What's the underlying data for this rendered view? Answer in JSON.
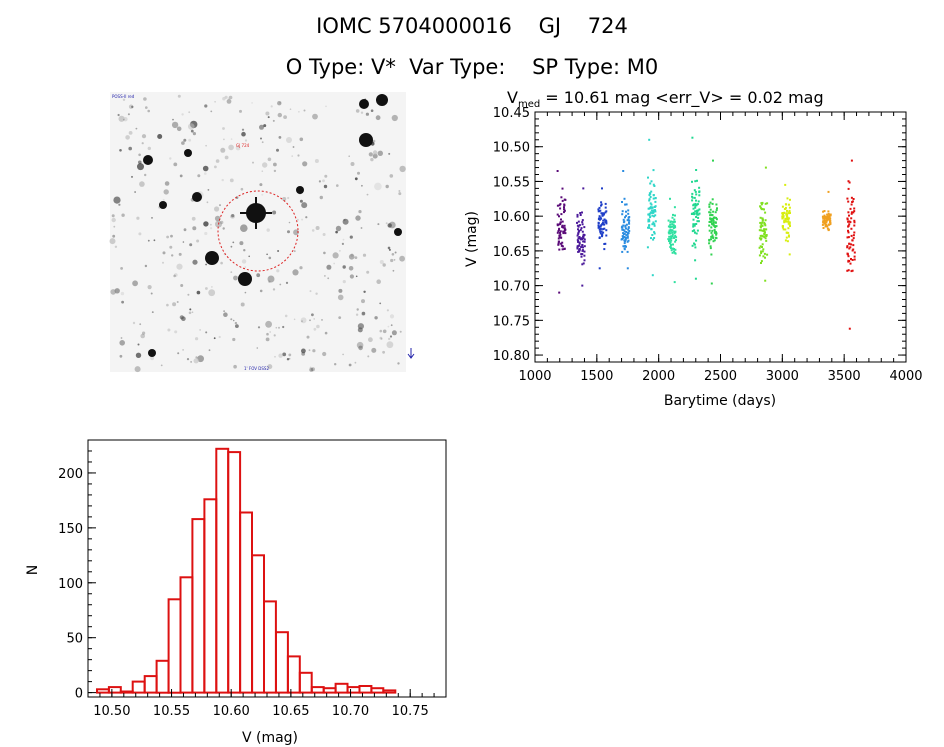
{
  "header": {
    "line1": "IOMC 5704000016    GJ    724",
    "line2": "O Type: V*  Var Type:    SP Type: M0"
  },
  "image_panel": {
    "label_top_left": "POSS-II red",
    "label_center": "GJ 724",
    "label_bottom": "1' FOV  DSS2"
  },
  "colors": {
    "histogram_bar": "#dd1111",
    "circle": "#dd2222",
    "axis": "#000000"
  },
  "chart_data": [
    {
      "type": "scatter",
      "title_parts": {
        "v": "V",
        "sub": "med",
        "rest": " = 10.61 mag <err_V> = 0.02 mag"
      },
      "xlabel": "Barytime (days)",
      "ylabel": "V (mag)",
      "xlim": [
        1000,
        4000
      ],
      "ylim": [
        10.45,
        10.81
      ],
      "y_inverted": true,
      "xticks": [
        1000,
        1500,
        2000,
        2500,
        3000,
        3500,
        4000
      ],
      "xtick_labels": [
        "1000",
        "1500",
        "2000",
        "2500",
        "3000",
        "3500",
        "4000"
      ],
      "yticks": [
        10.45,
        10.5,
        10.55,
        10.6,
        10.65,
        10.7,
        10.75,
        10.8
      ],
      "ytick_labels": [
        "10.45",
        "10.50",
        "10.55",
        "10.60",
        "10.65",
        "10.70",
        "10.75",
        "10.80"
      ],
      "groups": [
        {
          "x": 1215,
          "y_min": 10.535,
          "y_max": 10.71,
          "center": 10.615,
          "color": "#5a0a78"
        },
        {
          "x": 1370,
          "y_min": 10.56,
          "y_max": 10.7,
          "center": 10.635,
          "color": "#4b1a9a"
        },
        {
          "x": 1545,
          "y_min": 10.56,
          "y_max": 10.675,
          "center": 10.61,
          "color": "#1e3ec8"
        },
        {
          "x": 1730,
          "y_min": 10.535,
          "y_max": 10.675,
          "center": 10.615,
          "color": "#2a8ce0"
        },
        {
          "x": 1945,
          "y_min": 10.49,
          "y_max": 10.685,
          "center": 10.59,
          "color": "#2fd6c8"
        },
        {
          "x": 2110,
          "y_min": 10.575,
          "y_max": 10.695,
          "center": 10.62,
          "color": "#2fe0a0"
        },
        {
          "x": 2300,
          "y_min": 10.487,
          "y_max": 10.69,
          "center": 10.6,
          "color": "#20d890"
        },
        {
          "x": 2440,
          "y_min": 10.52,
          "y_max": 10.697,
          "center": 10.61,
          "color": "#30d250"
        },
        {
          "x": 2845,
          "y_min": 10.53,
          "y_max": 10.693,
          "center": 10.62,
          "color": "#80e020"
        },
        {
          "x": 3030,
          "y_min": 10.555,
          "y_max": 10.655,
          "center": 10.605,
          "color": "#d8ee10"
        },
        {
          "x": 3360,
          "y_min": 10.565,
          "y_max": 10.62,
          "center": 10.605,
          "color": "#f0a020"
        },
        {
          "x": 3555,
          "y_min": 10.52,
          "y_max": 10.762,
          "center": 10.625,
          "color": "#e01010"
        }
      ]
    },
    {
      "type": "bar",
      "subtype": "histogram",
      "xlabel": "V (mag)",
      "ylabel": "N",
      "xlim": [
        10.48,
        10.78
      ],
      "ylim": [
        -4,
        230
      ],
      "xticks": [
        10.5,
        10.55,
        10.6,
        10.65,
        10.7,
        10.75
      ],
      "xtick_labels": [
        "10.50",
        "10.55",
        "10.60",
        "10.65",
        "10.70",
        "10.75"
      ],
      "yticks": [
        0,
        50,
        100,
        150,
        200
      ],
      "ytick_labels": [
        "0",
        "50",
        "100",
        "150",
        "200"
      ],
      "bin_start": 10.4875,
      "bin_width": 0.01,
      "values": [
        3,
        5,
        1,
        10,
        15,
        29,
        85,
        105,
        158,
        176,
        222,
        219,
        164,
        125,
        83,
        55,
        33,
        18,
        5,
        4,
        8,
        5,
        6,
        4,
        2
      ]
    }
  ]
}
